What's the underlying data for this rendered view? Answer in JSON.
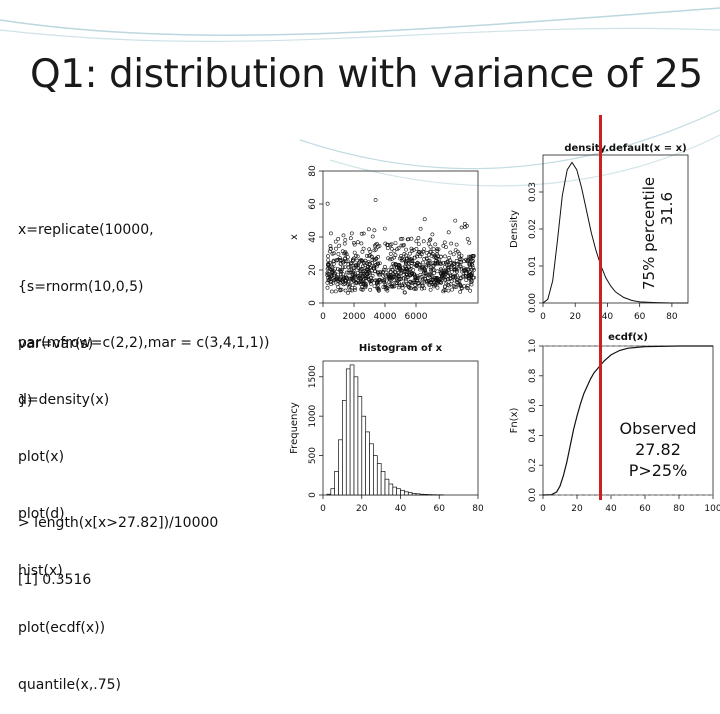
{
  "slide": {
    "title": "Q1: distribution with variance of 25",
    "code_block_1": [
      "x=replicate(10000,",
      "{s=rnorm(10,0,5)",
      "var=var(s)",
      "})"
    ],
    "code_block_2": [
      "par(mfrow=c(2,2),mar = c(3,4,1,1))",
      "d=density(x)",
      "plot(x)",
      "plot(d)",
      "hist(x)",
      "plot(ecdf(x))",
      "quantile(x,.75)"
    ],
    "code_block_3": [
      "> length(x[x>27.82])/10000",
      "[1] 0.3516"
    ],
    "annotation_percentile": [
      "75% percentile",
      "31.6"
    ],
    "annotation_observed": [
      "Observed",
      "27.82",
      "P>25%"
    ],
    "marker_color": "#cc1f1f"
  },
  "chart_data": [
    {
      "type": "scatter",
      "title": "",
      "ylabel": "x",
      "xlabel": "",
      "x_ticks": [
        "0",
        "2000",
        "4000",
        "6000"
      ],
      "y_ticks": [
        "0",
        "20",
        "40",
        "60",
        "80"
      ],
      "xlim": [
        0,
        10000
      ],
      "ylim": [
        0,
        80
      ]
    },
    {
      "type": "line",
      "title": "density.default(x = x)",
      "ylabel": "Density",
      "x_ticks": [
        "0",
        "20",
        "40",
        "60",
        "80"
      ],
      "y_ticks": [
        "0.00",
        "0.01",
        "0.02",
        "0.03"
      ],
      "xlim": [
        0,
        90
      ],
      "ylim": [
        0,
        0.04
      ],
      "x": [
        0,
        3,
        6,
        9,
        12,
        15,
        18,
        21,
        24,
        27,
        30,
        33,
        36,
        39,
        42,
        45,
        50,
        55,
        60,
        70,
        80,
        90
      ],
      "y": [
        0,
        0.001,
        0.006,
        0.017,
        0.029,
        0.036,
        0.038,
        0.036,
        0.031,
        0.025,
        0.019,
        0.014,
        0.01,
        0.0068,
        0.0046,
        0.003,
        0.0015,
        0.0007,
        0.0003,
        0.0001,
        0,
        0
      ]
    },
    {
      "type": "bar",
      "title": "Histogram of x",
      "ylabel": "Frequency",
      "x_ticks": [
        "0",
        "20",
        "40",
        "60",
        "80"
      ],
      "y_ticks": [
        "0",
        "500",
        "1000",
        "1500"
      ],
      "ylim": [
        0,
        1700
      ],
      "bin_width": 2,
      "bin_start": 2,
      "values": [
        10,
        80,
        300,
        700,
        1200,
        1600,
        1650,
        1500,
        1250,
        1000,
        800,
        650,
        500,
        400,
        300,
        200,
        140,
        100,
        80,
        60,
        40,
        30,
        20,
        15,
        10,
        8,
        5,
        4,
        3,
        2
      ]
    },
    {
      "type": "line",
      "title": "ecdf(x)",
      "ylabel": "Fn(x)",
      "x_ticks": [
        "0",
        "20",
        "40",
        "60",
        "80",
        "100"
      ],
      "y_ticks": [
        "0.0",
        "0.2",
        "0.4",
        "0.6",
        "0.8",
        "1.0"
      ],
      "xlim": [
        0,
        100
      ],
      "ylim": [
        0,
        1
      ],
      "x": [
        0,
        5,
        8,
        10,
        12,
        14,
        16,
        18,
        20,
        22,
        24,
        26,
        28,
        30,
        33,
        36,
        40,
        45,
        50,
        60,
        80,
        100
      ],
      "y": [
        0,
        0.002,
        0.02,
        0.06,
        0.13,
        0.22,
        0.33,
        0.44,
        0.53,
        0.61,
        0.68,
        0.73,
        0.78,
        0.82,
        0.86,
        0.9,
        0.94,
        0.97,
        0.985,
        0.995,
        1,
        1
      ]
    }
  ]
}
